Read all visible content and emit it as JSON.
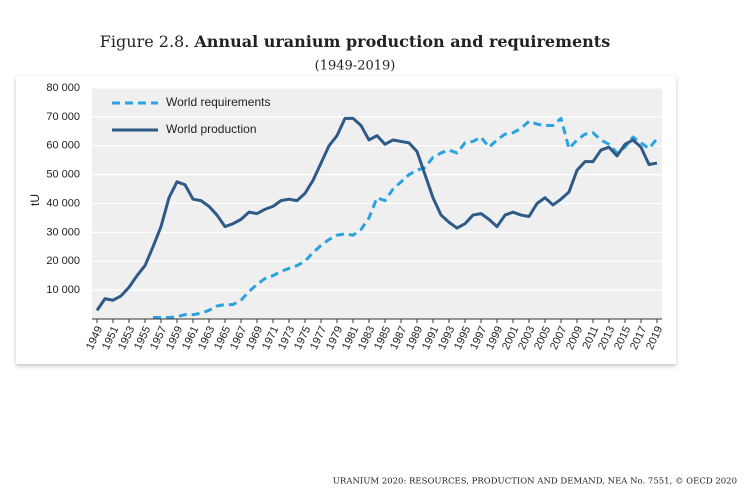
{
  "chart_data": {
    "type": "line",
    "figure_label": "Figure 2.8.",
    "title": "Annual uranium production and requirements",
    "subtitle": "(1949-2019)",
    "y_label": "tU",
    "source": "URANIUM 2020: RESOURCES, PRODUCTION AND DEMAND, NEA No. 7551, © OECD 2020",
    "legend": "top-left",
    "grid": true,
    "x": [
      1949,
      1950,
      1951,
      1952,
      1953,
      1954,
      1955,
      1956,
      1957,
      1958,
      1959,
      1960,
      1961,
      1962,
      1963,
      1964,
      1965,
      1966,
      1967,
      1968,
      1969,
      1970,
      1971,
      1972,
      1973,
      1974,
      1975,
      1976,
      1977,
      1978,
      1979,
      1980,
      1981,
      1982,
      1983,
      1984,
      1985,
      1986,
      1987,
      1988,
      1989,
      1990,
      1991,
      1992,
      1993,
      1994,
      1995,
      1996,
      1997,
      1998,
      1999,
      2000,
      2001,
      2002,
      2003,
      2004,
      2005,
      2006,
      2007,
      2008,
      2009,
      2010,
      2011,
      2012,
      2013,
      2014,
      2015,
      2016,
      2017,
      2018,
      2019
    ],
    "xlim": [
      1949,
      2019
    ],
    "xticks": [
      1949,
      1951,
      1953,
      1955,
      1957,
      1959,
      1961,
      1963,
      1965,
      1967,
      1969,
      1971,
      1973,
      1975,
      1977,
      1979,
      1981,
      1983,
      1985,
      1987,
      1989,
      1991,
      1993,
      1995,
      1997,
      1999,
      2001,
      2003,
      2005,
      2007,
      2009,
      2011,
      2013,
      2015,
      2017,
      2019
    ],
    "ylim": [
      0,
      80000
    ],
    "yticks": [
      {
        "value": 10000,
        "label": "10 000"
      },
      {
        "value": 20000,
        "label": "20 000"
      },
      {
        "value": 30000,
        "label": "30 000"
      },
      {
        "value": 40000,
        "label": "40 000"
      },
      {
        "value": 50000,
        "label": "50 000"
      },
      {
        "value": 60000,
        "label": "60 000"
      },
      {
        "value": 70000,
        "label": "70 000"
      },
      {
        "value": 80000,
        "label": "80 000"
      }
    ],
    "series": [
      {
        "name": "World requirements",
        "color": "#2ba3de",
        "dashed": true,
        "values": [
          null,
          null,
          null,
          null,
          null,
          null,
          null,
          500,
          500,
          500,
          800,
          1500,
          1500,
          2000,
          3000,
          4500,
          5000,
          5000,
          6500,
          9500,
          12000,
          14000,
          15000,
          16500,
          17500,
          18500,
          20000,
          23000,
          25500,
          27500,
          29000,
          29500,
          29000,
          31000,
          35000,
          42000,
          41000,
          45000,
          47500,
          50000,
          51500,
          52500,
          56000,
          57500,
          58500,
          57500,
          61000,
          61500,
          63000,
          59500,
          62000,
          64000,
          64500,
          66000,
          68500,
          67500,
          67000,
          67000,
          69500,
          59000,
          62000,
          64000,
          64500,
          62000,
          60500,
          57500,
          59500,
          63000,
          61000,
          59000,
          62500
        ]
      },
      {
        "name": "World production",
        "color": "#2e5a87",
        "dashed": false,
        "values": [
          3000,
          7000,
          6500,
          8000,
          11000,
          15000,
          18500,
          25000,
          32000,
          42000,
          47500,
          46500,
          41500,
          41000,
          39000,
          36000,
          32000,
          33000,
          34500,
          37000,
          36500,
          38000,
          39000,
          41000,
          41500,
          41000,
          43500,
          48000,
          54000,
          60000,
          63500,
          69500,
          69500,
          67000,
          62000,
          63500,
          60500,
          62000,
          61500,
          61000,
          58000,
          50000,
          42000,
          36000,
          33500,
          31500,
          33000,
          36000,
          36500,
          34500,
          32000,
          36000,
          37000,
          36000,
          35500,
          40000,
          42000,
          39500,
          41500,
          44000,
          51500,
          54500,
          54500,
          58500,
          59500,
          56500,
          60500,
          62000,
          59500,
          53500,
          54000
        ]
      }
    ]
  }
}
